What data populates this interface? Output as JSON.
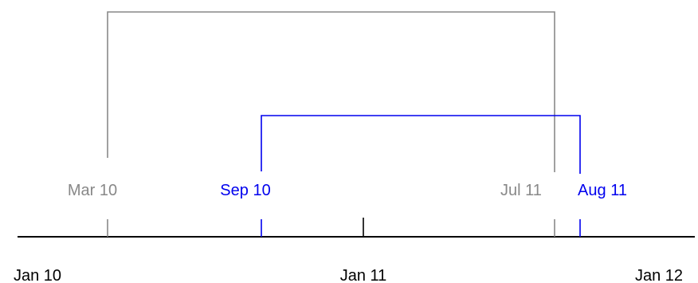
{
  "axis": {
    "ticks": [
      {
        "label": "Jan 10",
        "date": "2010-01-01"
      },
      {
        "label": "Jan 11",
        "date": "2011-01-01"
      },
      {
        "label": "Jan 12",
        "date": "2012-01-01"
      }
    ]
  },
  "spans": [
    {
      "color": "#888888",
      "start": {
        "label": "Mar 10",
        "date": "2010-03-01"
      },
      "end": {
        "label": "Jul 11",
        "date": "2011-07-01"
      }
    },
    {
      "color": "#0000ee",
      "start": {
        "label": "Sep 10",
        "date": "2010-09-01"
      },
      "end": {
        "label": "Aug 11",
        "date": "2011-08-01"
      }
    }
  ],
  "colors": {
    "axis": "#000000"
  }
}
